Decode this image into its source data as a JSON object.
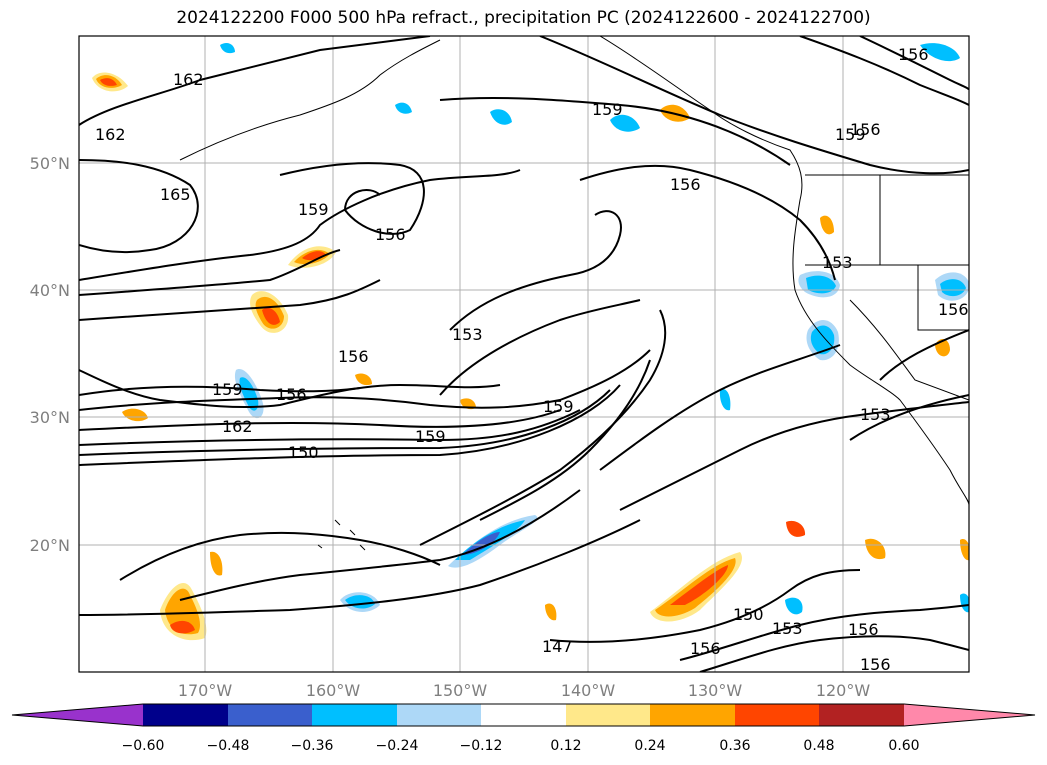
{
  "title": "2024122200 F000 500 hPa refract., precipitation PC (2024122600 - 2024122700)",
  "axes": {
    "lat_labels": [
      "50°N",
      "40°N",
      "30°N",
      "20°N"
    ],
    "lon_labels": [
      "170°W",
      "160°W",
      "150°W",
      "140°W",
      "130°W",
      "120°W"
    ]
  },
  "contour_labels": [
    {
      "text": "162"
    },
    {
      "text": "162"
    },
    {
      "text": "165"
    },
    {
      "text": "159"
    },
    {
      "text": "156"
    },
    {
      "text": "159"
    },
    {
      "text": "156"
    },
    {
      "text": "156"
    },
    {
      "text": "159"
    },
    {
      "text": "156"
    },
    {
      "text": "153"
    },
    {
      "text": "153"
    },
    {
      "text": "156"
    },
    {
      "text": "156"
    },
    {
      "text": "159"
    },
    {
      "text": "156"
    },
    {
      "text": "162"
    },
    {
      "text": "150"
    },
    {
      "text": "159"
    },
    {
      "text": "159"
    },
    {
      "text": "153"
    },
    {
      "text": "150"
    },
    {
      "text": "153"
    },
    {
      "text": "156"
    },
    {
      "text": "156"
    },
    {
      "text": "156"
    },
    {
      "text": "147"
    }
  ],
  "colorbar": {
    "ticks": [
      "−0.60",
      "−0.48",
      "−0.36",
      "−0.24",
      "−0.12",
      "0.12",
      "0.24",
      "0.36",
      "0.48",
      "0.60"
    ],
    "colors": {
      "below_min": "#9932cc",
      "-0.60": "#00008b",
      "-0.48": "#3a5fcd",
      "-0.36": "#00bfff",
      "-0.24": "#add8f7",
      "-0.12": "#ffffff",
      "0.12": "#ffe88a",
      "0.24": "#ffa500",
      "0.36": "#ff4500",
      "0.48": "#b22222",
      "above_max": "#ff88aa"
    }
  }
}
